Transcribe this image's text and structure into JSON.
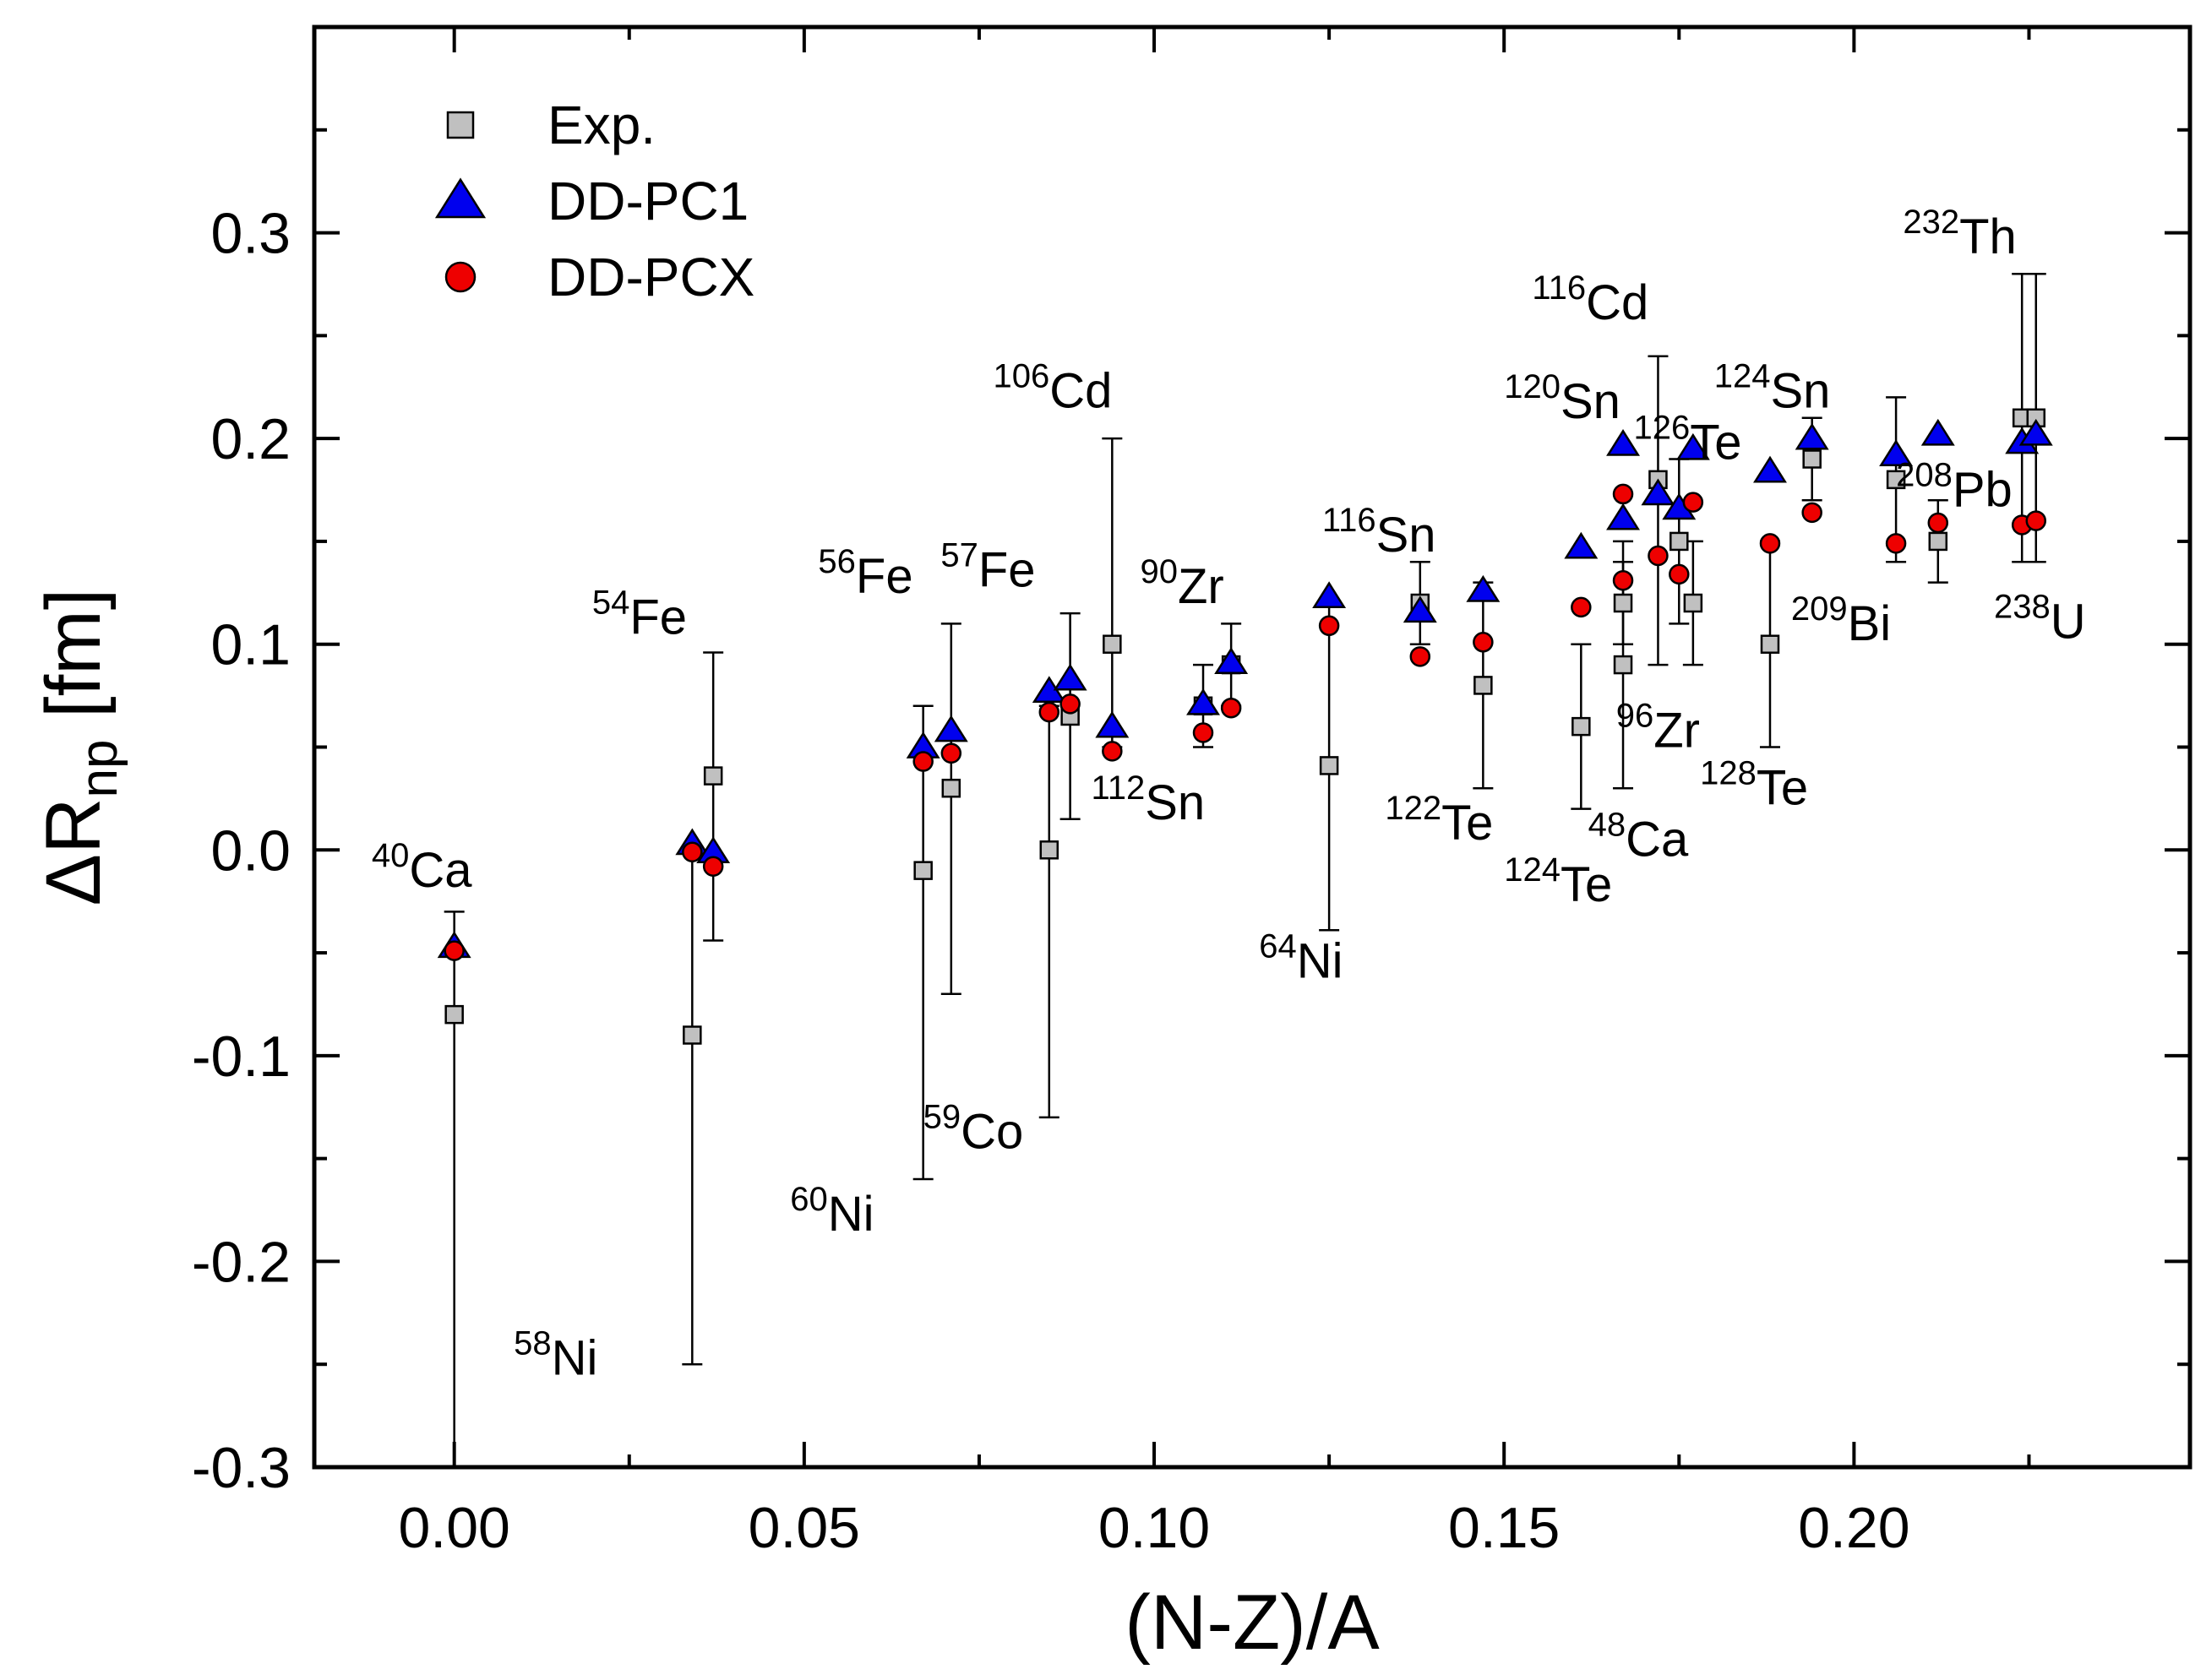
{
  "chart_data": {
    "type": "scatter",
    "xlabel": "(N-Z)/A",
    "ylabel": {
      "main": "ΔR",
      "sub": "np",
      "unit": " [fm]"
    },
    "xlim": [
      -0.02,
      0.248
    ],
    "ylim": [
      -0.3,
      0.4
    ],
    "x_ticks": [
      {
        "value": 0.0,
        "label": "0.00"
      },
      {
        "value": 0.05,
        "label": "0.05"
      },
      {
        "value": 0.1,
        "label": "0.10"
      },
      {
        "value": 0.15,
        "label": "0.15"
      },
      {
        "value": 0.2,
        "label": "0.20"
      }
    ],
    "y_ticks": [
      {
        "value": -0.3,
        "label": "-0.3"
      },
      {
        "value": -0.2,
        "label": "-0.2"
      },
      {
        "value": -0.1,
        "label": "-0.1"
      },
      {
        "value": 0.0,
        "label": "0.0"
      },
      {
        "value": 0.1,
        "label": "0.1"
      },
      {
        "value": 0.2,
        "label": "0.2"
      },
      {
        "value": 0.3,
        "label": "0.3"
      }
    ],
    "legend": {
      "placement": "top-left",
      "entries": [
        {
          "label": "Exp.",
          "marker": "square",
          "color": "#c0c0c0"
        },
        {
          "label": "DD-PC1",
          "marker": "triangle",
          "color": "#0000ee"
        },
        {
          "label": "DD-PCX",
          "marker": "circle",
          "color": "#ee0000"
        }
      ]
    },
    "series": [
      {
        "name": "Exp.",
        "marker": "square",
        "color": "#c0c0c0",
        "points": [
          {
            "x": 0.0,
            "y": -0.08,
            "err_low": -0.3,
            "err_high": -0.03
          },
          {
            "x": 0.034,
            "y": -0.09,
            "err_low": -0.25,
            "err_high": 0.0
          },
          {
            "x": 0.037,
            "y": 0.036,
            "err_low": -0.044,
            "err_high": 0.096
          },
          {
            "x": 0.067,
            "y": -0.01,
            "err_low": -0.16,
            "err_high": 0.07
          },
          {
            "x": 0.071,
            "y": 0.03,
            "err_low": -0.07,
            "err_high": 0.11
          },
          {
            "x": 0.085,
            "y": 0.0,
            "err_low": -0.13,
            "err_high": 0.07
          },
          {
            "x": 0.088,
            "y": 0.065,
            "err_low": 0.015,
            "err_high": 0.115
          },
          {
            "x": 0.094,
            "y": 0.1,
            "err_low": 0.05,
            "err_high": 0.2
          },
          {
            "x": 0.107,
            "y": 0.07,
            "err_low": 0.05,
            "err_high": 0.09
          },
          {
            "x": 0.111,
            "y": 0.09,
            "err_low": 0.07,
            "err_high": 0.11
          },
          {
            "x": 0.125,
            "y": 0.041,
            "err_low": -0.039,
            "err_high": 0.121
          },
          {
            "x": 0.138,
            "y": 0.12,
            "err_low": 0.1,
            "err_high": 0.14
          },
          {
            "x": 0.147,
            "y": 0.08,
            "err_low": 0.03,
            "err_high": 0.13
          },
          {
            "x": 0.161,
            "y": 0.06,
            "err_low": 0.02,
            "err_high": 0.1
          },
          {
            "x": 0.167,
            "y": 0.12,
            "err_low": 0.1,
            "err_high": 0.14
          },
          {
            "x": 0.167,
            "y": 0.09,
            "err_low": 0.03,
            "err_high": 0.15
          },
          {
            "x": 0.172,
            "y": 0.18,
            "err_low": 0.09,
            "err_high": 0.24
          },
          {
            "x": 0.175,
            "y": 0.15,
            "err_low": 0.11,
            "err_high": 0.19
          },
          {
            "x": 0.177,
            "y": 0.12,
            "err_low": 0.09,
            "err_high": 0.15
          },
          {
            "x": 0.188,
            "y": 0.1,
            "err_low": 0.05,
            "err_high": 0.15
          },
          {
            "x": 0.194,
            "y": 0.19,
            "err_low": 0.17,
            "err_high": 0.21
          },
          {
            "x": 0.206,
            "y": 0.18,
            "err_low": 0.14,
            "err_high": 0.22
          },
          {
            "x": 0.212,
            "y": 0.15,
            "err_low": 0.13,
            "err_high": 0.17
          },
          {
            "x": 0.224,
            "y": 0.21,
            "err_low": 0.14,
            "err_high": 0.28
          },
          {
            "x": 0.226,
            "y": 0.21,
            "err_low": 0.14,
            "err_high": 0.28
          }
        ]
      },
      {
        "name": "DD-PC1",
        "marker": "triangle",
        "color": "#0000ee",
        "points": [
          {
            "x": 0.0,
            "y": -0.047
          },
          {
            "x": 0.034,
            "y": 0.003
          },
          {
            "x": 0.037,
            "y": -0.001
          },
          {
            "x": 0.067,
            "y": 0.05
          },
          {
            "x": 0.071,
            "y": 0.058
          },
          {
            "x": 0.085,
            "y": 0.077
          },
          {
            "x": 0.088,
            "y": 0.083
          },
          {
            "x": 0.094,
            "y": 0.06
          },
          {
            "x": 0.107,
            "y": 0.071
          },
          {
            "x": 0.111,
            "y": 0.091
          },
          {
            "x": 0.125,
            "y": 0.123
          },
          {
            "x": 0.138,
            "y": 0.116
          },
          {
            "x": 0.147,
            "y": 0.126
          },
          {
            "x": 0.161,
            "y": 0.147
          },
          {
            "x": 0.167,
            "y": 0.161
          },
          {
            "x": 0.167,
            "y": 0.197
          },
          {
            "x": 0.172,
            "y": 0.173
          },
          {
            "x": 0.175,
            "y": 0.166
          },
          {
            "x": 0.177,
            "y": 0.195
          },
          {
            "x": 0.188,
            "y": 0.184
          },
          {
            "x": 0.194,
            "y": 0.2
          },
          {
            "x": 0.206,
            "y": 0.192
          },
          {
            "x": 0.212,
            "y": 0.202
          },
          {
            "x": 0.224,
            "y": 0.198
          },
          {
            "x": 0.226,
            "y": 0.202
          }
        ]
      },
      {
        "name": "DD-PCX",
        "marker": "circle",
        "color": "#ee0000",
        "points": [
          {
            "x": 0.0,
            "y": -0.049
          },
          {
            "x": 0.034,
            "y": -0.001
          },
          {
            "x": 0.037,
            "y": -0.008
          },
          {
            "x": 0.067,
            "y": 0.043
          },
          {
            "x": 0.071,
            "y": 0.047
          },
          {
            "x": 0.085,
            "y": 0.067
          },
          {
            "x": 0.088,
            "y": 0.071
          },
          {
            "x": 0.094,
            "y": 0.048
          },
          {
            "x": 0.107,
            "y": 0.057
          },
          {
            "x": 0.111,
            "y": 0.069
          },
          {
            "x": 0.125,
            "y": 0.109
          },
          {
            "x": 0.138,
            "y": 0.094
          },
          {
            "x": 0.147,
            "y": 0.101
          },
          {
            "x": 0.161,
            "y": 0.118
          },
          {
            "x": 0.167,
            "y": 0.131
          },
          {
            "x": 0.167,
            "y": 0.173
          },
          {
            "x": 0.172,
            "y": 0.143
          },
          {
            "x": 0.175,
            "y": 0.134
          },
          {
            "x": 0.177,
            "y": 0.169
          },
          {
            "x": 0.188,
            "y": 0.149
          },
          {
            "x": 0.194,
            "y": 0.164
          },
          {
            "x": 0.206,
            "y": 0.149
          },
          {
            "x": 0.212,
            "y": 0.159
          },
          {
            "x": 0.224,
            "y": 0.158
          },
          {
            "x": 0.226,
            "y": 0.16
          }
        ]
      }
    ],
    "annotations": [
      {
        "mass": "40",
        "symbol": "Ca",
        "x": -0.0118,
        "y": -0.018
      },
      {
        "mass": "58",
        "symbol": "Ni",
        "x": 0.0085,
        "y": -0.255
      },
      {
        "mass": "54",
        "symbol": "Fe",
        "x": 0.0197,
        "y": 0.105
      },
      {
        "mass": "56",
        "symbol": "Fe",
        "x": 0.052,
        "y": 0.125
      },
      {
        "mass": "57",
        "symbol": "Fe",
        "x": 0.0695,
        "y": 0.128
      },
      {
        "mass": "60",
        "symbol": "Ni",
        "x": 0.048,
        "y": -0.185
      },
      {
        "mass": "59",
        "symbol": "Co",
        "x": 0.067,
        "y": -0.145
      },
      {
        "mass": "106",
        "symbol": "Cd",
        "x": 0.077,
        "y": 0.215
      },
      {
        "mass": "112",
        "symbol": "Sn",
        "x": 0.091,
        "y": 0.015
      },
      {
        "mass": "90",
        "symbol": "Zr",
        "x": 0.098,
        "y": 0.12
      },
      {
        "mass": "64",
        "symbol": "Ni",
        "x": 0.115,
        "y": -0.062
      },
      {
        "mass": "116",
        "symbol": "Sn",
        "x": 0.124,
        "y": 0.145
      },
      {
        "mass": "122",
        "symbol": "Te",
        "x": 0.133,
        "y": 0.005
      },
      {
        "mass": "124",
        "symbol": "Te",
        "x": 0.15,
        "y": -0.025
      },
      {
        "mass": "48",
        "symbol": "Ca",
        "x": 0.162,
        "y": -0.003
      },
      {
        "mass": "96",
        "symbol": "Zr",
        "x": 0.166,
        "y": 0.05
      },
      {
        "mass": "116",
        "symbol": "Cd",
        "x": 0.154,
        "y": 0.258
      },
      {
        "mass": "120",
        "symbol": "Sn",
        "x": 0.15,
        "y": 0.21
      },
      {
        "mass": "126",
        "symbol": "Te",
        "x": 0.1685,
        "y": 0.19
      },
      {
        "mass": "124",
        "symbol": "Sn",
        "x": 0.18,
        "y": 0.215
      },
      {
        "mass": "128",
        "symbol": "Te",
        "x": 0.178,
        "y": 0.022
      },
      {
        "mass": "209",
        "symbol": "Bi",
        "x": 0.191,
        "y": 0.102
      },
      {
        "mass": "208",
        "symbol": "Pb",
        "x": 0.206,
        "y": 0.167
      },
      {
        "mass": "238",
        "symbol": "U",
        "x": 0.22,
        "y": 0.103
      },
      {
        "mass": "232",
        "symbol": "Th",
        "x": 0.207,
        "y": 0.29
      }
    ]
  }
}
